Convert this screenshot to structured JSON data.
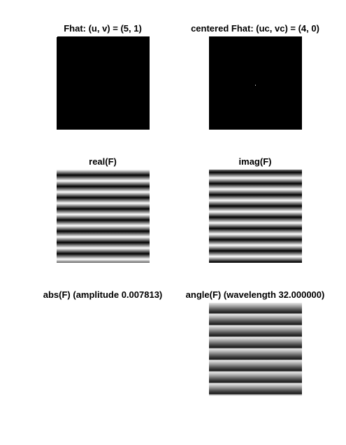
{
  "figure": {
    "panels": [
      {
        "id": "fhat",
        "title": "Fhat: (u, v) = (5, 1)"
      },
      {
        "id": "centered",
        "title": "centered Fhat: (uc, vc) = (4, 0)"
      },
      {
        "id": "real",
        "title": "real(F)"
      },
      {
        "id": "imag",
        "title": "imag(F)"
      },
      {
        "id": "abs",
        "title": "abs(F) (amplitude 0.007813)"
      },
      {
        "id": "angle",
        "title": "angle(F) (wavelength 32.000000)"
      }
    ]
  }
}
